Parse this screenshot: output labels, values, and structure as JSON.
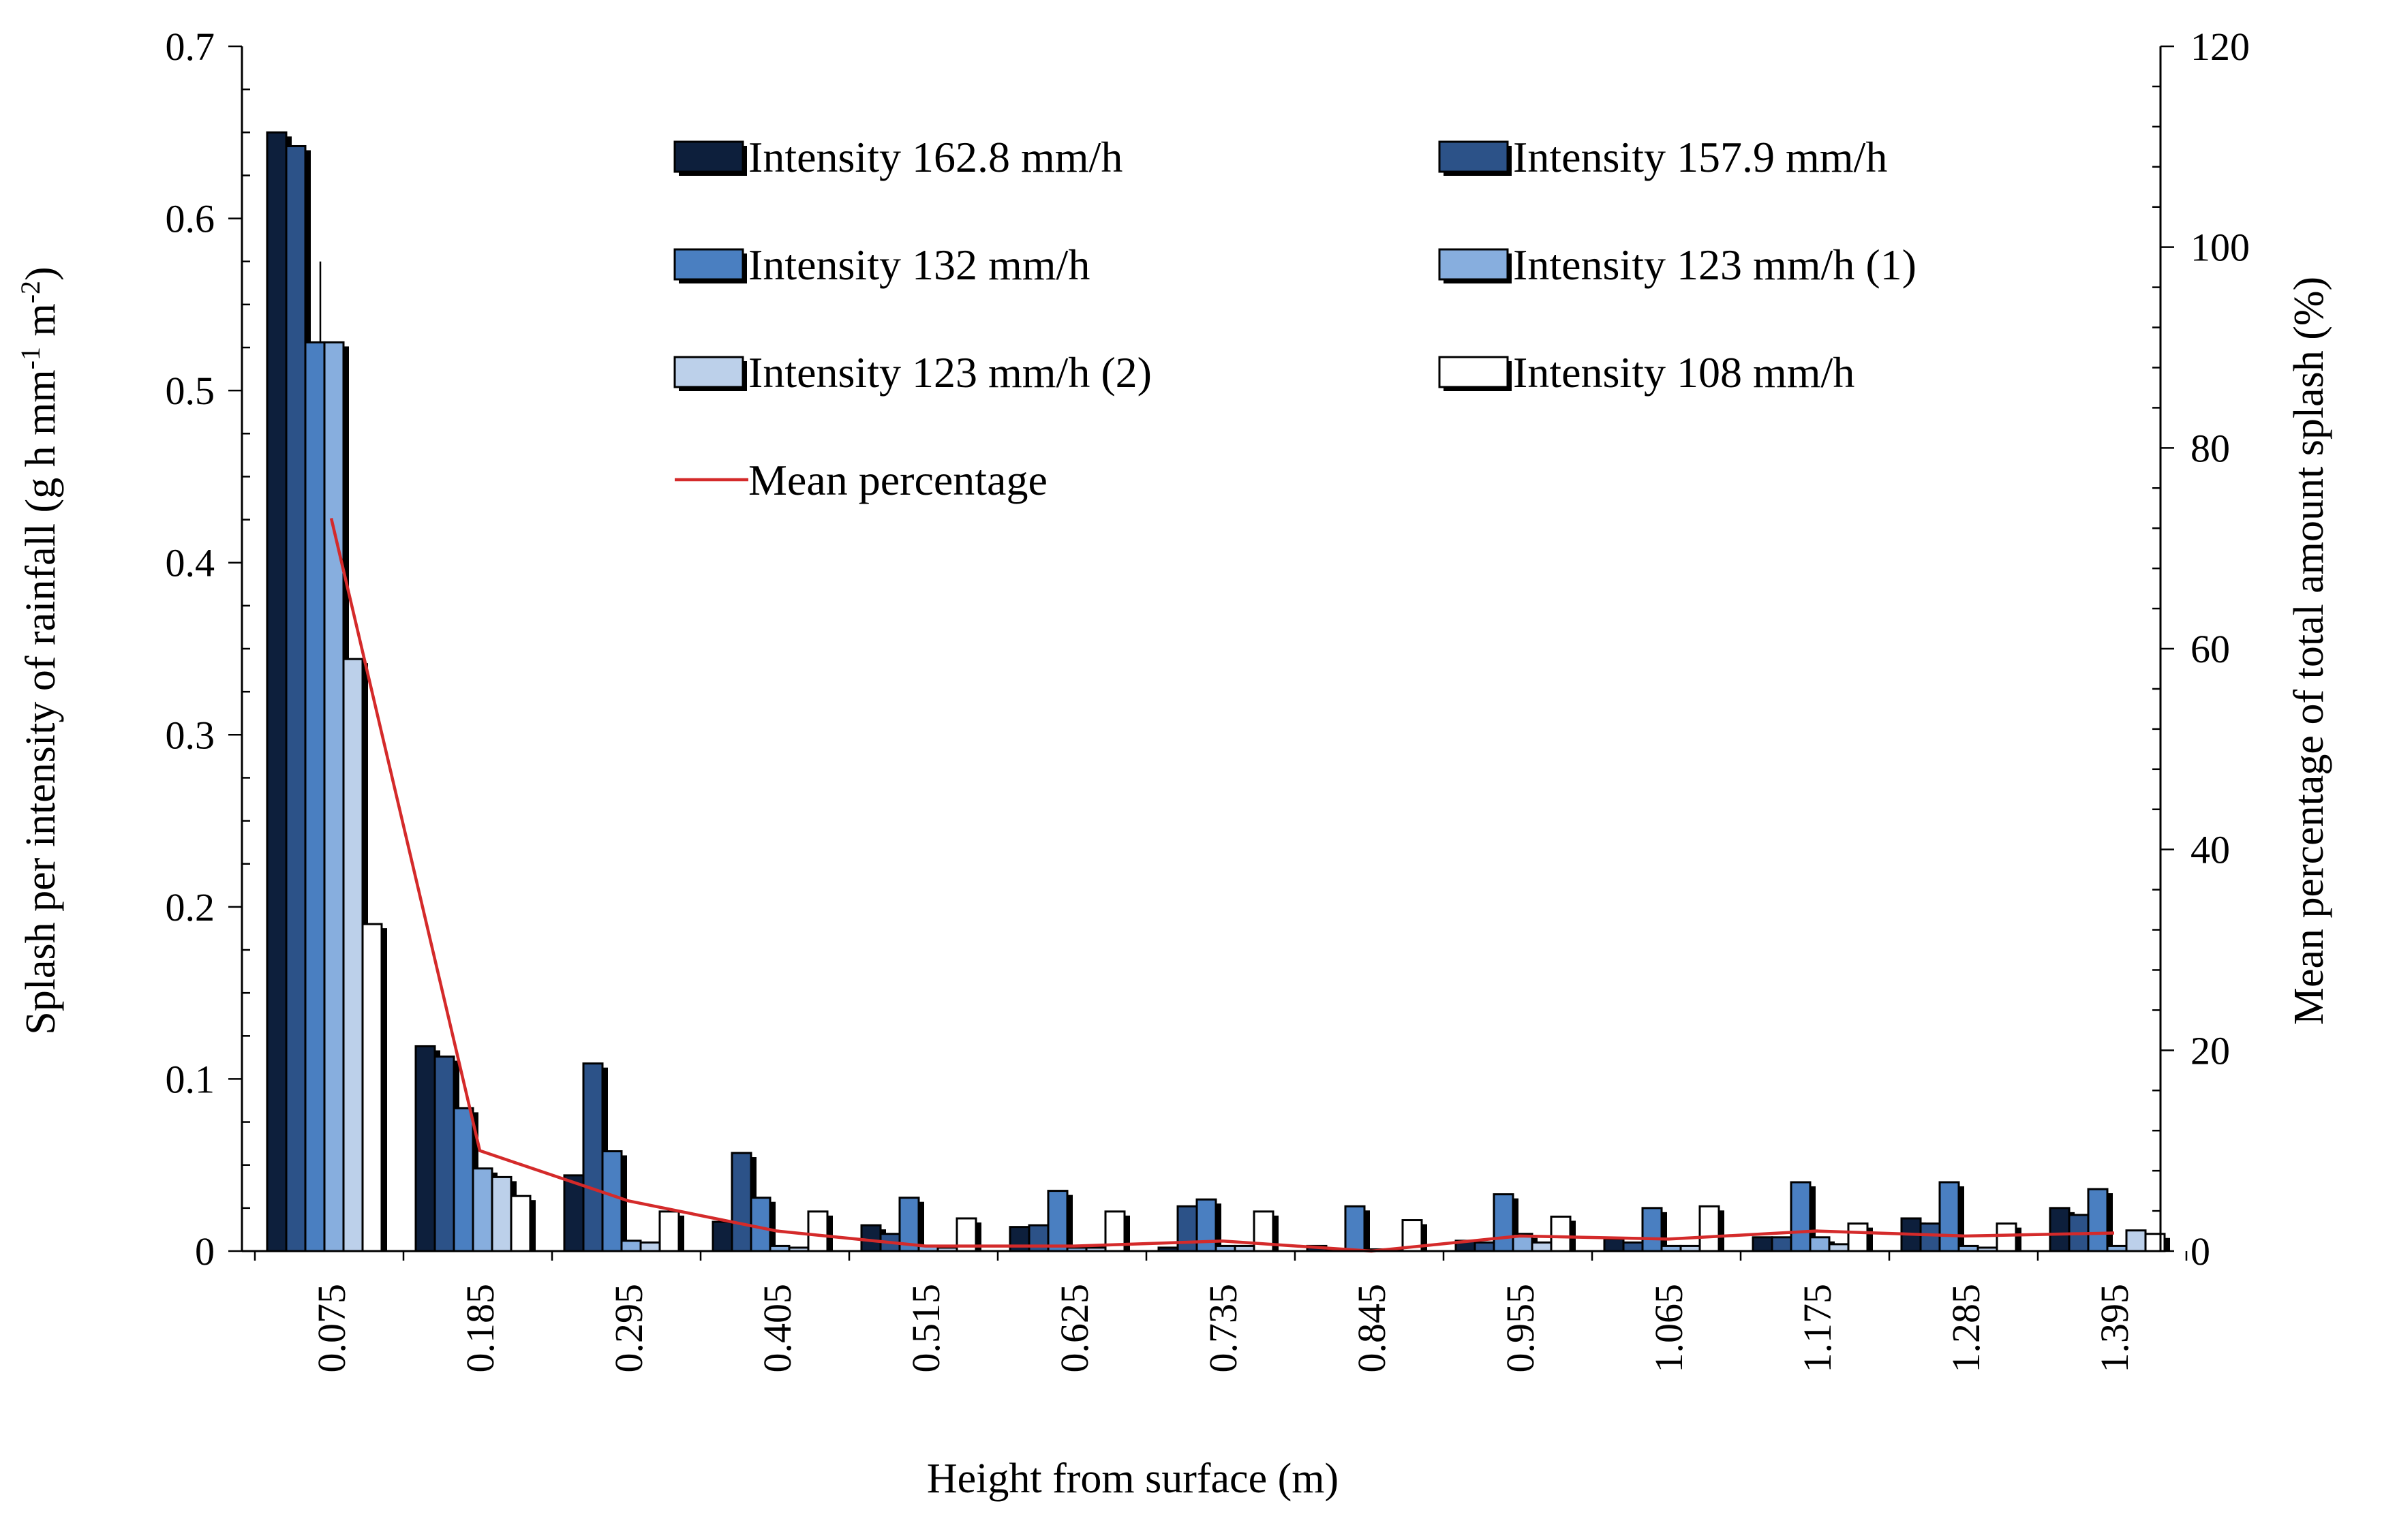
{
  "chart_data": {
    "type": "bar",
    "xlabel": "Height from surface (m)",
    "ylabel_parts": [
      "Splash per intensity of rainfall (g h mm",
      "-1",
      " m",
      "-2",
      ")"
    ],
    "y2label": "Mean percentage of total amount splash (%)",
    "ylim": [
      0,
      0.7
    ],
    "y2lim": [
      0,
      120
    ],
    "yticks": [
      "0",
      "0.1",
      "0.2",
      "0.3",
      "0.4",
      "0.5",
      "0.6",
      "0.7"
    ],
    "y2ticks": [
      "0",
      "20",
      "40",
      "60",
      "80",
      "100",
      "120"
    ],
    "categories": [
      "0.075",
      "0.185",
      "0.295",
      "0.405",
      "0.515",
      "0.625",
      "0.735",
      "0.845",
      "0.955",
      "1.065",
      "1.175",
      "1.285",
      "1.395"
    ],
    "series": [
      {
        "name": "Intensity 162.8 mm/h",
        "color": "#0d1f3c",
        "values": [
          0.65,
          0.119,
          0.044,
          0.017,
          0.015,
          0.014,
          0.002,
          0.003,
          0.006,
          0.007,
          0.008,
          0.019,
          0.025
        ]
      },
      {
        "name": "Intensity 157.9 mm/h",
        "color": "#2c5288",
        "values": [
          0.642,
          0.113,
          0.109,
          0.057,
          0.01,
          0.015,
          0.026,
          0.001,
          0.005,
          0.005,
          0.008,
          0.016,
          0.021
        ]
      },
      {
        "name": "Intensity 132 mm/h",
        "color": "#4a7fc1",
        "values": [
          0.528,
          0.083,
          0.058,
          0.031,
          0.031,
          0.035,
          0.03,
          0.026,
          0.033,
          0.025,
          0.04,
          0.04,
          0.036
        ]
      },
      {
        "name": "Intensity 123 mm/h (1)",
        "color": "#87aede",
        "values": [
          0.528,
          0.048,
          0.006,
          0.003,
          0.003,
          0.002,
          0.003,
          0.001,
          0.01,
          0.003,
          0.008,
          0.003,
          0.003
        ]
      },
      {
        "name": "Intensity 123 mm/h (2)",
        "color": "#bcd0ea",
        "values": [
          0.344,
          0.043,
          0.005,
          0.002,
          0.002,
          0.002,
          0.003,
          0.001,
          0.005,
          0.003,
          0.004,
          0.002,
          0.012
        ]
      },
      {
        "name": "Intensity 108 mm/h",
        "color": "#ffffff",
        "values": [
          0.19,
          0.032,
          0.023,
          0.023,
          0.019,
          0.023,
          0.023,
          0.018,
          0.02,
          0.026,
          0.016,
          0.016,
          0.01
        ]
      }
    ],
    "line_series": {
      "name": "Mean percentage",
      "color": "#d42a2a",
      "values": [
        73,
        10,
        5,
        2,
        0.5,
        0.5,
        1,
        0,
        1.5,
        1.2,
        2,
        1.5,
        1.8
      ]
    },
    "error_bar": {
      "category_index": 0,
      "series_index": 2,
      "upper": 0.575
    }
  }
}
